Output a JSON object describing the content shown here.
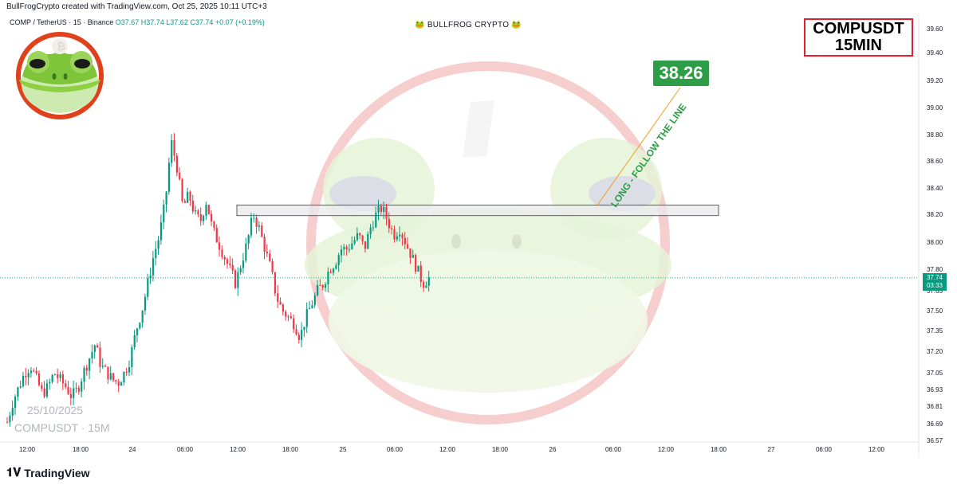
{
  "header": {
    "credit": "BullFrogCrypto created with TradingView.com, Oct 25, 2025 10:11 UTC+3",
    "symbol": "COMP / TetherUS · 15 · Binance",
    "ohlc": "O37.67 H37.74 L37.62 C37.74 +0.07 (+0.19%)",
    "center_title": "🐸 BULLFROG CRYPTO 🐸"
  },
  "title_box": {
    "line1": "COMPUSDT",
    "line2": "15MIN"
  },
  "target": {
    "value": "38.26",
    "label": "LONG - FOLLOW THE LINE"
  },
  "price_tag": {
    "price": "37.74",
    "countdown": "03:33"
  },
  "watermark": {
    "date": "25/10/2025",
    "symbol": "COMPUSDT · 15M"
  },
  "footer": {
    "logo_text": "TradingView"
  },
  "colors": {
    "up": "#089981",
    "down": "#f23645",
    "accent_red": "#e0202c",
    "target_green": "#2e9e46"
  },
  "icons": {
    "frog": "frog-logo-icon",
    "tv": "tradingview-logo-icon"
  },
  "chart_data": {
    "type": "candlestick",
    "title": "COMPUSDT 15MIN",
    "y_ticks": [
      39.6,
      39.4,
      39.2,
      39.0,
      38.8,
      38.6,
      38.4,
      38.2,
      38.0,
      37.8,
      37.65,
      37.5,
      37.35,
      37.2,
      37.05,
      36.93,
      36.81,
      36.69,
      36.57
    ],
    "y_tick_labels": [
      "39.60",
      "39.40",
      "39.20",
      "39.00",
      "38.80",
      "38.60",
      "38.40",
      "38.20",
      "38.00",
      "37.80",
      "37.65",
      "37.50",
      "37.35",
      "37.20",
      "37.05",
      "36.93",
      "36.81",
      "36.69",
      "36.57"
    ],
    "x_ticks": [
      "12:00",
      "18:00",
      "24",
      "06:00",
      "12:00",
      "18:00",
      "25",
      "06:00",
      "12:00",
      "18:00",
      "26",
      "06:00",
      "12:00",
      "18:00",
      "27",
      "06:00",
      "12:00"
    ],
    "current_price": 37.74,
    "resistance_zone": [
      38.19,
      38.27
    ],
    "target_price": 38.26,
    "close_path": [
      36.7,
      36.85,
      36.95,
      37.05,
      37.1,
      37.0,
      36.9,
      36.95,
      37.05,
      37.0,
      36.95,
      36.88,
      36.93,
      37.05,
      37.15,
      37.25,
      37.1,
      37.05,
      37.0,
      36.98,
      37.05,
      37.15,
      37.35,
      37.5,
      37.7,
      37.9,
      38.05,
      38.3,
      38.75,
      38.55,
      38.25,
      38.35,
      38.2,
      38.15,
      38.3,
      38.1,
      38.0,
      37.9,
      37.8,
      37.7,
      37.85,
      38.0,
      38.2,
      38.1,
      37.95,
      37.8,
      37.6,
      37.5,
      37.45,
      37.4,
      37.3,
      37.45,
      37.55,
      37.65,
      37.7,
      37.8,
      37.85,
      37.95,
      37.95,
      38.0,
      38.05,
      37.95,
      38.1,
      38.2,
      38.25,
      38.15,
      38.05,
      38.1,
      38.0,
      37.9,
      37.8,
      37.7,
      37.74
    ]
  }
}
